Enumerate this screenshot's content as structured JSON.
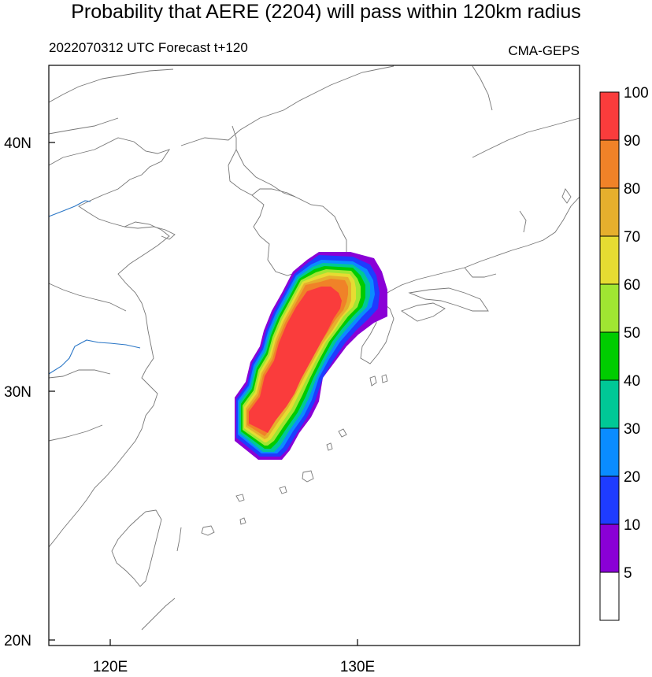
{
  "title": "Probability that AERE (2204) will pass within 120km radius",
  "subtitle_left": "2022070312 UTC Forecast t+120",
  "subtitle_right": "CMA-GEPS",
  "map": {
    "lon_ticks": [
      {
        "value": 120,
        "label": "120E"
      },
      {
        "value": 130,
        "label": "130E"
      }
    ],
    "lat_ticks": [
      {
        "value": 40,
        "label": "40N"
      },
      {
        "value": 30,
        "label": "30N"
      },
      {
        "value": 20,
        "label": "20N"
      }
    ]
  },
  "colorbar": {
    "levels": [
      {
        "label": "5",
        "color": "#8a00d6"
      },
      {
        "label": "10",
        "color": "#1e3cff"
      },
      {
        "label": "20",
        "color": "#0a8cff"
      },
      {
        "label": "30",
        "color": "#00c896"
      },
      {
        "label": "40",
        "color": "#00cc00"
      },
      {
        "label": "50",
        "color": "#a0e632"
      },
      {
        "label": "60",
        "color": "#e6dc32"
      },
      {
        "label": "70",
        "color": "#e6af2d"
      },
      {
        "label": "80",
        "color": "#f08228"
      },
      {
        "label": "90",
        "color": "#fa3c3c"
      },
      {
        "label": "100",
        "color": ""
      }
    ],
    "below_min_color": "#ffffff"
  }
}
